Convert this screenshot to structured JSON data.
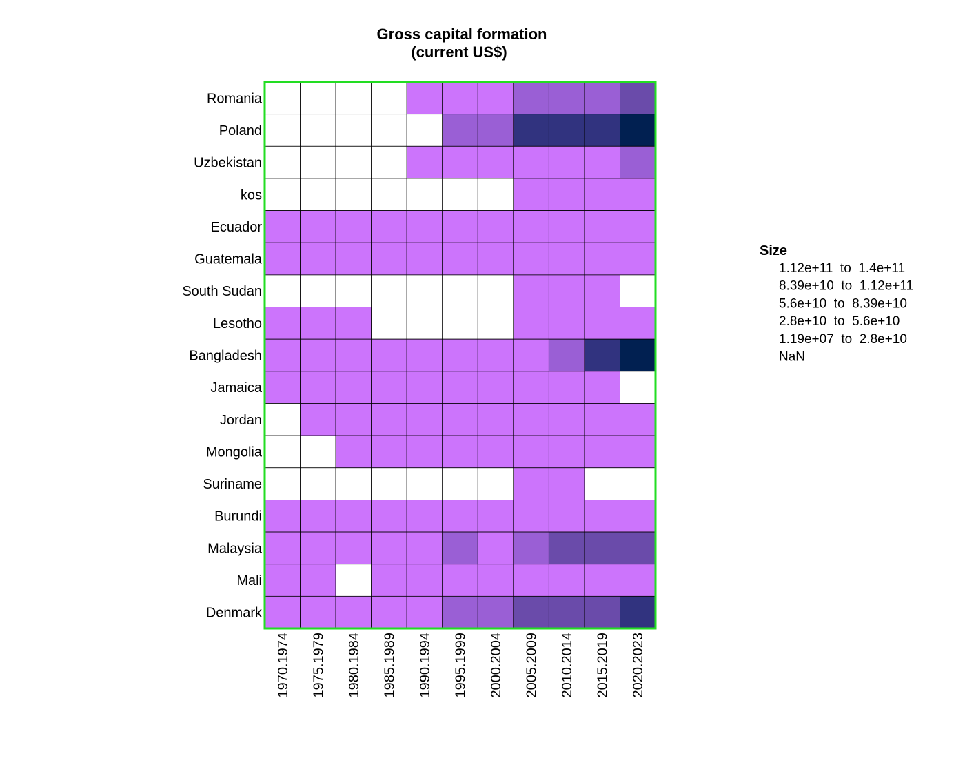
{
  "chart_data": {
    "type": "heatmap",
    "title_lines": [
      "Gross capital formation",
      "(current US$)"
    ],
    "columns": [
      "1970.1974",
      "1975.1979",
      "1980.1984",
      "1985.1989",
      "1990.1994",
      "1995.1999",
      "2000.2004",
      "2005.2009",
      "2010.2014",
      "2015.2019",
      "2020.2023"
    ],
    "rows": [
      "Romania",
      "Poland",
      "Uzbekistan",
      "kos",
      "Ecuador",
      "Guatemala",
      "South Sudan",
      "Lesotho",
      "Bangladesh",
      "Jamaica",
      "Jordan",
      "Mongolia",
      "Suriname",
      "Burundi",
      "Malaysia",
      "Mali",
      "Denmark"
    ],
    "bins": [
      {
        "label": "1.12e+11  to  1.4e+11",
        "color": "#012051"
      },
      {
        "label": "8.39e+10  to  1.12e+11",
        "color": "#31337F"
      },
      {
        "label": "5.6e+10  to  8.39e+10",
        "color": "#6A4BAA"
      },
      {
        "label": "2.8e+10  to  5.6e+10",
        "color": "#9A5FD5"
      },
      {
        "label": "1.19e+07  to  2.8e+10",
        "color": "#CC74FC"
      },
      {
        "label": "NaN",
        "color": "#FFFFFF"
      }
    ],
    "cell_bins": [
      [
        5,
        5,
        5,
        5,
        4,
        4,
        4,
        3,
        3,
        3,
        2
      ],
      [
        5,
        5,
        5,
        5,
        5,
        3,
        3,
        1,
        1,
        1,
        0
      ],
      [
        5,
        5,
        5,
        5,
        4,
        4,
        4,
        4,
        4,
        4,
        3
      ],
      [
        5,
        5,
        5,
        5,
        5,
        5,
        5,
        4,
        4,
        4,
        4
      ],
      [
        4,
        4,
        4,
        4,
        4,
        4,
        4,
        4,
        4,
        4,
        4
      ],
      [
        4,
        4,
        4,
        4,
        4,
        4,
        4,
        4,
        4,
        4,
        4
      ],
      [
        5,
        5,
        5,
        5,
        5,
        5,
        5,
        4,
        4,
        4,
        5
      ],
      [
        4,
        4,
        4,
        5,
        5,
        5,
        5,
        4,
        4,
        4,
        4
      ],
      [
        4,
        4,
        4,
        4,
        4,
        4,
        4,
        4,
        3,
        1,
        0
      ],
      [
        4,
        4,
        4,
        4,
        4,
        4,
        4,
        4,
        4,
        4,
        5
      ],
      [
        5,
        4,
        4,
        4,
        4,
        4,
        4,
        4,
        4,
        4,
        4
      ],
      [
        5,
        5,
        4,
        4,
        4,
        4,
        4,
        4,
        4,
        4,
        4
      ],
      [
        5,
        5,
        5,
        5,
        5,
        5,
        5,
        4,
        4,
        5,
        5
      ],
      [
        4,
        4,
        4,
        4,
        4,
        4,
        4,
        4,
        4,
        4,
        4
      ],
      [
        4,
        4,
        4,
        4,
        4,
        3,
        4,
        3,
        2,
        2,
        2
      ],
      [
        4,
        4,
        5,
        4,
        4,
        4,
        4,
        4,
        4,
        4,
        4
      ],
      [
        4,
        4,
        4,
        4,
        4,
        3,
        3,
        2,
        2,
        2,
        1
      ]
    ],
    "legend_title": "Size",
    "legend_position": "right",
    "border_color": "#22DD22"
  }
}
